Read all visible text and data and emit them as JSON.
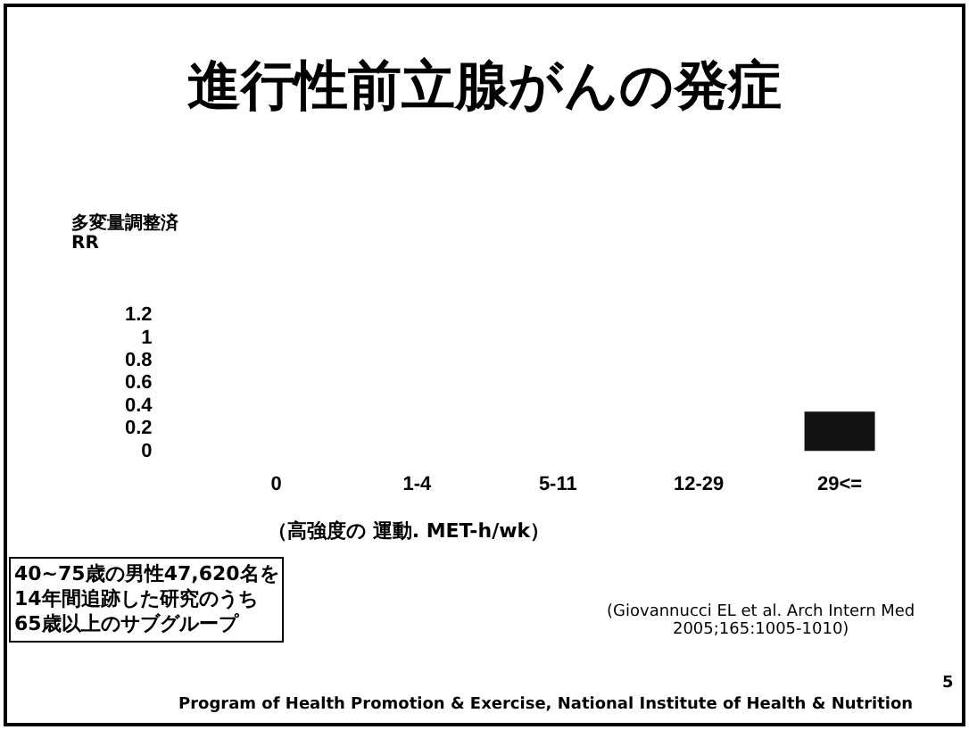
{
  "chart_data": {
    "type": "bar",
    "title": "進行性前立腺がんの発症",
    "ylabel": "多変量調整済RR",
    "xlabel": "（高強度の 運動. MET-h/wk）",
    "categories": [
      "0",
      "1-4",
      "5-11",
      "12-29",
      "29<="
    ],
    "values": [
      null,
      null,
      null,
      null,
      0.35
    ],
    "color": "#111111",
    "ylim": [
      0,
      1.2
    ],
    "yticks": [
      0,
      0.2,
      0.4,
      0.6,
      0.8,
      1,
      1.2
    ],
    "grid": false,
    "annotations": [
      "40~75歳の男性47,620名を\n14年間追跡した研究のうち\n65歳以上のサブグループ",
      "(Giovannucci EL et al. Arch Intern Med\n2005;165:1005-1010)",
      "5",
      "Program of Health Promotion & Exercise, National Institute of Health & Nutrition"
    ]
  }
}
